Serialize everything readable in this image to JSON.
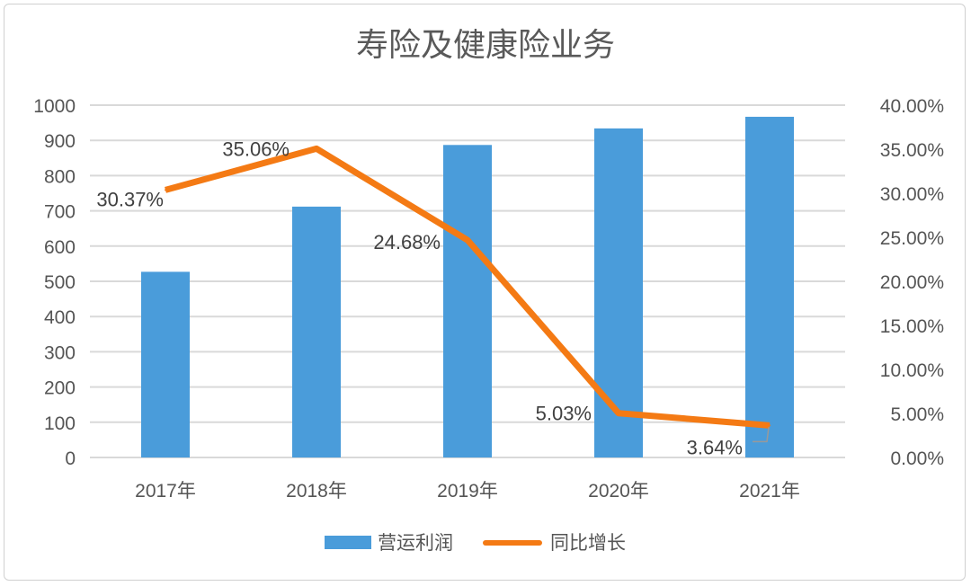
{
  "chart_data": {
    "type": "bar+line",
    "title": "寿险及健康险业务",
    "categories": [
      "2017年",
      "2018年",
      "2019年",
      "2020年",
      "2021年"
    ],
    "series": [
      {
        "name": "营运利润",
        "type": "bar",
        "axis": "left",
        "color": "#4a9cda",
        "values": [
          527,
          712,
          887,
          934,
          967
        ]
      },
      {
        "name": "同比增长",
        "type": "line",
        "axis": "right",
        "color": "#f47a14",
        "values": [
          30.37,
          35.06,
          24.68,
          5.03,
          3.64
        ],
        "labels": [
          "30.37%",
          "35.06%",
          "24.68%",
          "5.03%",
          "3.64%"
        ]
      }
    ],
    "y_left": {
      "min": 0,
      "max": 1000,
      "ticks": [
        "0",
        "100",
        "200",
        "300",
        "400",
        "500",
        "600",
        "700",
        "800",
        "900",
        "1000"
      ]
    },
    "y_right": {
      "min": 0,
      "max": 40,
      "ticks": [
        "0.00%",
        "5.00%",
        "10.00%",
        "15.00%",
        "20.00%",
        "25.00%",
        "30.00%",
        "35.00%",
        "40.00%"
      ]
    },
    "grid": true,
    "legend_position": "bottom"
  }
}
